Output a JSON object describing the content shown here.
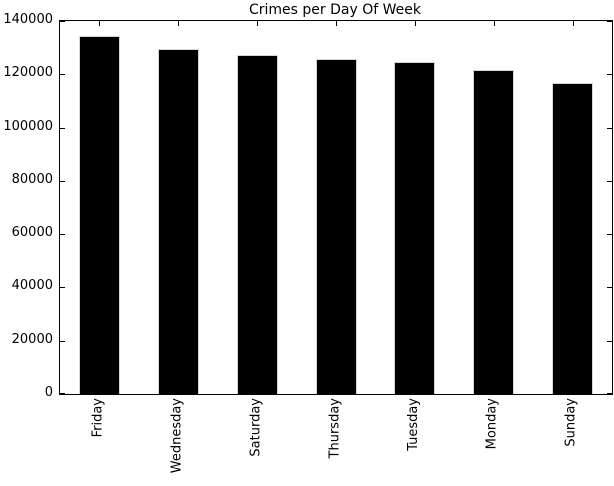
{
  "window": {
    "kind": "matplotlib-figure",
    "background": "#ffffff"
  },
  "chart_data": {
    "type": "bar",
    "title": "Crimes per Day Of Week",
    "categories": [
      "Friday",
      "Wednesday",
      "Saturday",
      "Thursday",
      "Tuesday",
      "Monday",
      "Sunday"
    ],
    "values": [
      134400,
      129400,
      127400,
      125600,
      124700,
      121500,
      116900
    ],
    "xlabel": "",
    "ylabel": "",
    "ylim": [
      0,
      140000
    ],
    "yticks": [
      0,
      20000,
      40000,
      60000,
      80000,
      100000,
      120000,
      140000
    ],
    "ytick_labels": [
      "0",
      "20000",
      "40000",
      "60000",
      "80000",
      "100000",
      "120000",
      "140000"
    ],
    "xtick_label_rotation": "vertical",
    "grid": false,
    "legend": null,
    "bar_color": "#000000",
    "bar_edge_color": "#d6d6d6",
    "axis_color": "#000000",
    "text_color": "#000000",
    "tick_direction": "in"
  }
}
